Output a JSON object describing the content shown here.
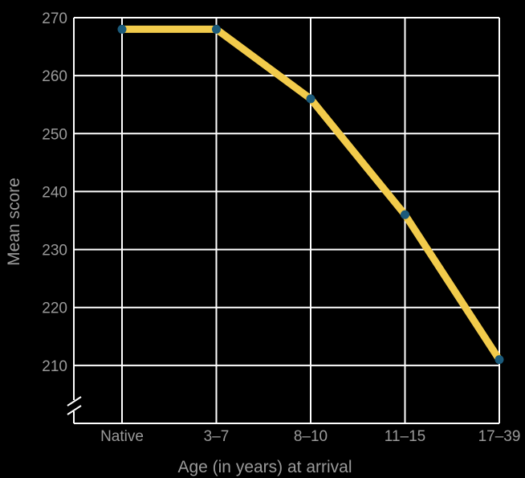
{
  "chart_data": {
    "type": "line",
    "title": "",
    "xlabel": "Age (in years) at arrival",
    "ylabel": "Mean score",
    "categories": [
      "Native",
      "3–7",
      "8–10",
      "11–15",
      "17–39"
    ],
    "series": [
      {
        "values": [
          268,
          268,
          256,
          236,
          211
        ]
      }
    ],
    "yticks": [
      210,
      220,
      230,
      240,
      250,
      260,
      270
    ],
    "ylim": [
      200,
      270
    ],
    "y_axis_break": true,
    "grid": true,
    "colors": {
      "line": "#F2CB4B",
      "marker": "#1B5A7A",
      "grid": "#ffffff",
      "text": "#9a9a9a",
      "background": "#000000"
    }
  }
}
